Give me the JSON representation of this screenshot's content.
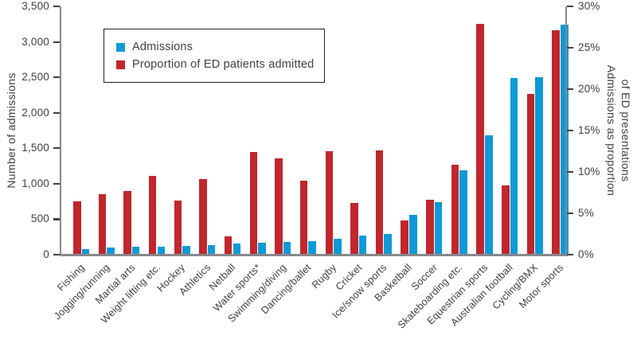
{
  "chart_data": {
    "type": "bar",
    "title": "",
    "grid": false,
    "legend_position": "top-left-inside",
    "categories": [
      "Fishing",
      "Jogging/running",
      "Martial arts",
      "Weight lifting etc.",
      "Hockey",
      "Athletics",
      "Netball",
      "Water sports*",
      "Swimming/diving",
      "Dancing/ballet",
      "Rugby",
      "Cricket",
      "Ice/snow sports",
      "Basketball",
      "Soccer",
      "Skateboarding etc.",
      "Equestrian sports",
      "Australian football",
      "Cycling/BMX",
      "Motor sports"
    ],
    "series": [
      {
        "name": "Admissions",
        "axis": "left",
        "color": "#0e9ad7",
        "values": [
          75,
          100,
          110,
          115,
          125,
          135,
          155,
          170,
          185,
          190,
          230,
          270,
          290,
          560,
          745,
          1190,
          1685,
          2490,
          2505,
          3245
        ]
      },
      {
        "name": "Proportion of ED patients admitted",
        "axis": "right",
        "color": "#c0262c",
        "values": [
          6.4,
          7.3,
          7.7,
          9.5,
          6.5,
          9.1,
          2.2,
          12.4,
          11.6,
          8.9,
          12.5,
          6.3,
          12.6,
          4.1,
          6.6,
          10.9,
          27.9,
          8.4,
          19.4,
          27.1
        ]
      }
    ],
    "left_axis": {
      "label": "Number of admissions",
      "min": 0,
      "max": 3500,
      "tick_step": 500,
      "tick_labels": [
        "3,500",
        "3,000",
        "2,500",
        "2,000",
        "1,500",
        "1,000",
        "500",
        "0"
      ]
    },
    "right_axis": {
      "label_line1": "Admissions as proportion",
      "label_line2": "of ED presentations",
      "min": 0,
      "max": 30,
      "tick_step": 5,
      "tick_labels": [
        "30%",
        "25%",
        "20%",
        "15%",
        "10%",
        "5%",
        "0%"
      ]
    }
  },
  "colors": {
    "axis_line": "#87898c",
    "tick_mark": "#414042",
    "text": "#414042",
    "legend_border": "#231f20",
    "background": "#ffffff"
  }
}
